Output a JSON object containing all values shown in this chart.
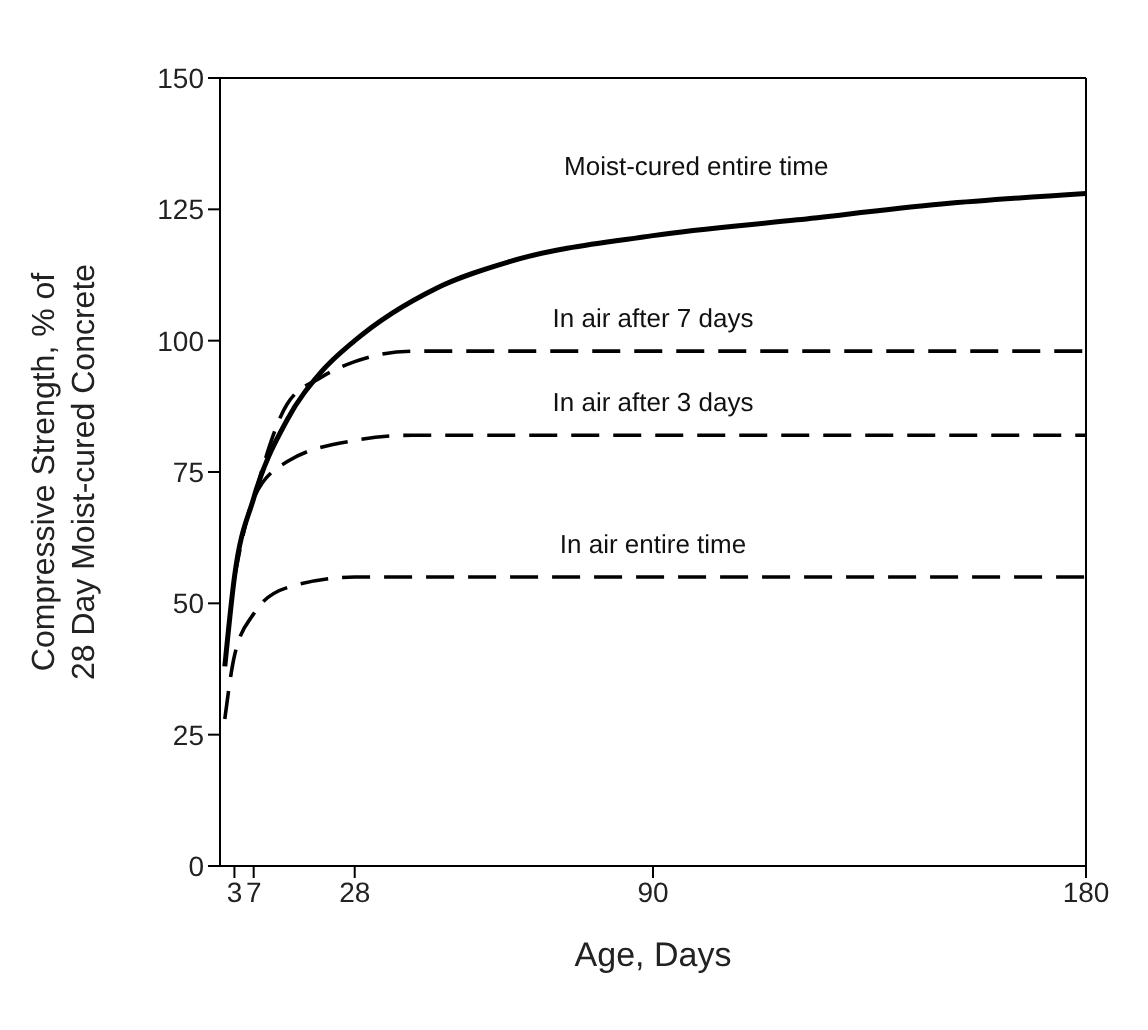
{
  "chart_data": {
    "type": "line",
    "xlabel": "Age, Days",
    "ylabel": "Compressive Strength, % of\n28 Day Moist-cured Concrete",
    "xlim": [
      0,
      180
    ],
    "xticks": [
      3,
      7,
      28,
      90,
      180
    ],
    "ylim": [
      0,
      150
    ],
    "yticks": [
      0,
      25,
      50,
      75,
      100,
      125,
      150
    ],
    "marker": "none",
    "series": [
      {
        "name": "Moist-cured entire time",
        "color": "#000000",
        "line_style": "solid",
        "x": [
          1,
          3,
          7,
          14,
          21,
          28,
          45,
          60,
          90,
          120,
          150,
          180
        ],
        "values": [
          38,
          55,
          70,
          85,
          94,
          100,
          110,
          115,
          120,
          123,
          126,
          128
        ]
      },
      {
        "name": "In air after 7 days",
        "color": "#000000",
        "line_style": "dashed",
        "x": [
          7,
          14,
          21,
          28,
          40,
          60,
          180
        ],
        "values": [
          70,
          88,
          93,
          96,
          98,
          98,
          98
        ]
      },
      {
        "name": "In air after 3 days",
        "color": "#000000",
        "line_style": "dashed",
        "x": [
          3,
          7,
          14,
          28,
          40,
          60,
          180
        ],
        "values": [
          55,
          70,
          77,
          81,
          82,
          82,
          82
        ]
      },
      {
        "name": "In air entire time",
        "color": "#000000",
        "line_style": "dashed",
        "x": [
          1,
          3,
          7,
          14,
          28,
          40,
          180
        ],
        "values": [
          28,
          40,
          48,
          53,
          55,
          55,
          55
        ]
      }
    ]
  }
}
